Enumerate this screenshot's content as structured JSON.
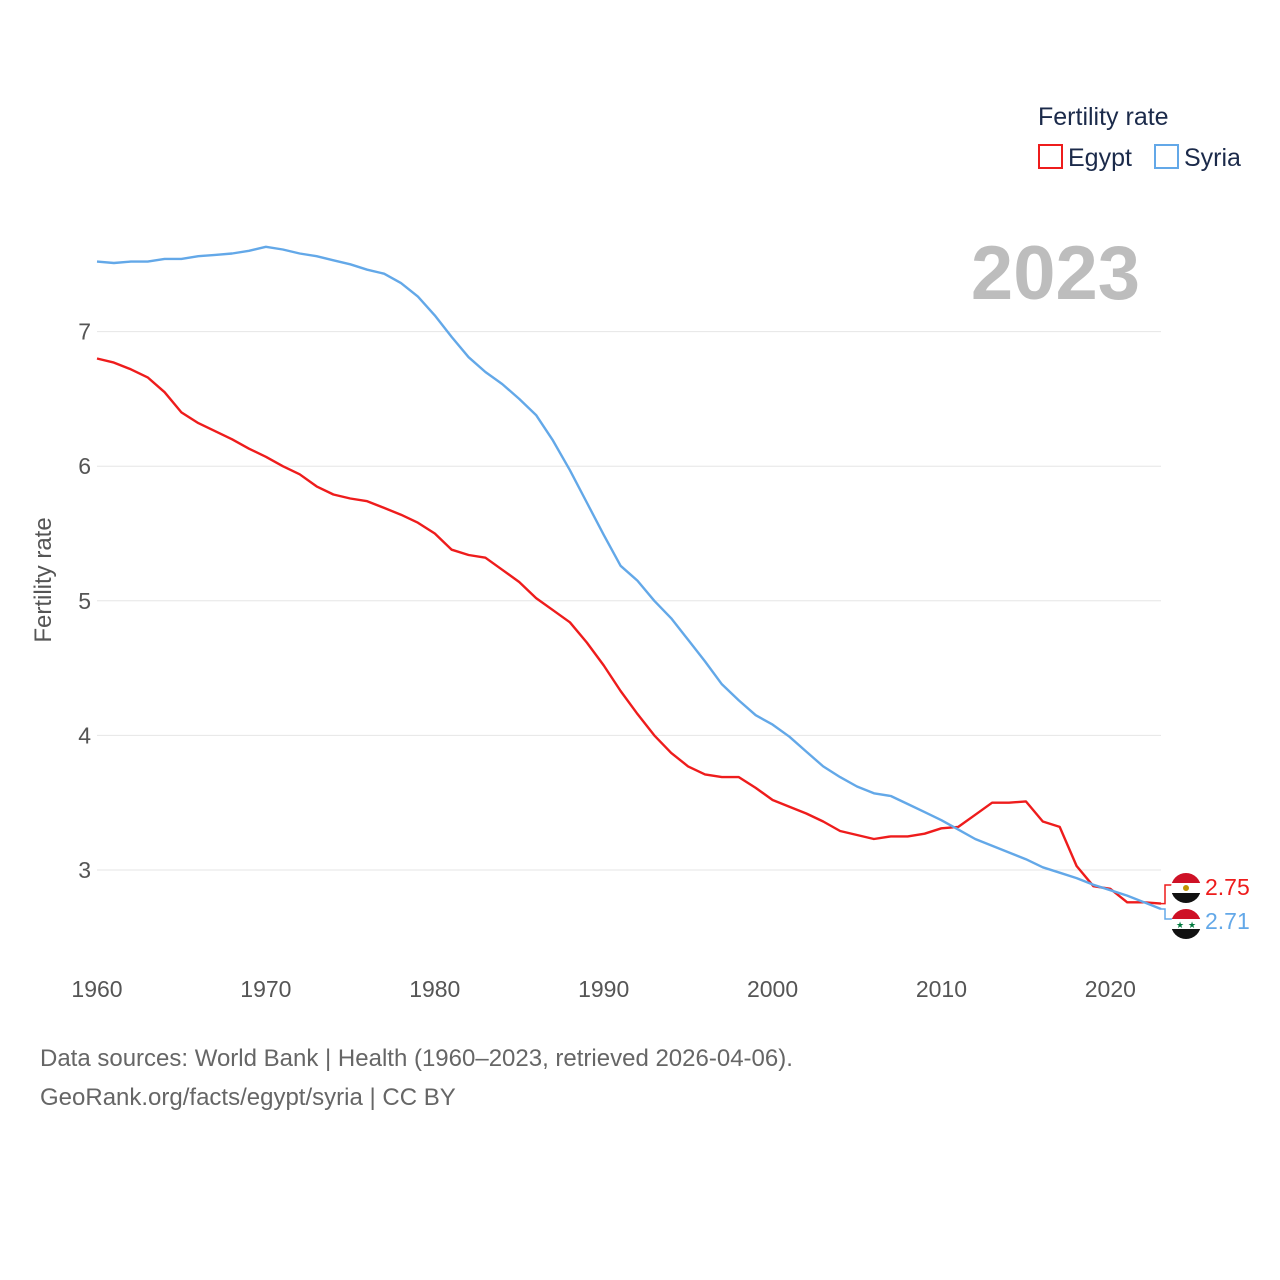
{
  "chart_data": {
    "type": "line",
    "title": "",
    "year_label": "2023",
    "xlabel": "",
    "ylabel": "Fertility rate",
    "xlim": [
      1960,
      2023
    ],
    "ylim": [
      2.5,
      7.7
    ],
    "x_ticks": [
      "1960",
      "1970",
      "1980",
      "1990",
      "2000",
      "2010",
      "2020"
    ],
    "y_ticks": [
      "3",
      "4",
      "5",
      "6",
      "7"
    ],
    "grid": true,
    "legend": {
      "title": "Fertility rate",
      "position": "top-right",
      "entries": [
        {
          "name": "Egypt",
          "color": "#ee1c1c"
        },
        {
          "name": "Syria",
          "color": "#63a8e8"
        }
      ]
    },
    "x": [
      1960,
      1961,
      1962,
      1963,
      1964,
      1965,
      1966,
      1967,
      1968,
      1969,
      1970,
      1971,
      1972,
      1973,
      1974,
      1975,
      1976,
      1977,
      1978,
      1979,
      1980,
      1981,
      1982,
      1983,
      1984,
      1985,
      1986,
      1987,
      1988,
      1989,
      1990,
      1991,
      1992,
      1993,
      1994,
      1995,
      1996,
      1997,
      1998,
      1999,
      2000,
      2001,
      2002,
      2003,
      2004,
      2005,
      2006,
      2007,
      2008,
      2009,
      2010,
      2011,
      2012,
      2013,
      2014,
      2015,
      2016,
      2017,
      2018,
      2019,
      2020,
      2021,
      2022,
      2023
    ],
    "series": [
      {
        "name": "Egypt",
        "color": "#ee1c1c",
        "end_label": "2.75",
        "flag": "egypt-flag-icon",
        "values": [
          6.8,
          6.77,
          6.72,
          6.66,
          6.55,
          6.4,
          6.32,
          6.26,
          6.2,
          6.13,
          6.07,
          6.0,
          5.94,
          5.85,
          5.79,
          5.76,
          5.74,
          5.69,
          5.64,
          5.58,
          5.5,
          5.38,
          5.34,
          5.32,
          5.23,
          5.14,
          5.02,
          4.93,
          4.84,
          4.69,
          4.52,
          4.33,
          4.16,
          4.0,
          3.87,
          3.77,
          3.71,
          3.69,
          3.69,
          3.61,
          3.52,
          3.47,
          3.42,
          3.36,
          3.29,
          3.26,
          3.23,
          3.25,
          3.25,
          3.27,
          3.31,
          3.32,
          3.41,
          3.5,
          3.5,
          3.51,
          3.36,
          3.32,
          3.03,
          2.88,
          2.86,
          2.76,
          2.76,
          2.75
        ]
      },
      {
        "name": "Syria",
        "color": "#63a8e8",
        "end_label": "2.71",
        "flag": "syria-flag-icon",
        "values": [
          7.52,
          7.51,
          7.52,
          7.52,
          7.54,
          7.54,
          7.56,
          7.57,
          7.58,
          7.6,
          7.63,
          7.61,
          7.58,
          7.56,
          7.53,
          7.5,
          7.46,
          7.43,
          7.36,
          7.26,
          7.12,
          6.96,
          6.81,
          6.7,
          6.61,
          6.5,
          6.38,
          6.19,
          5.97,
          5.73,
          5.49,
          5.26,
          5.15,
          5.0,
          4.87,
          4.71,
          4.55,
          4.38,
          4.26,
          4.15,
          4.08,
          3.99,
          3.88,
          3.77,
          3.69,
          3.62,
          3.57,
          3.55,
          3.49,
          3.43,
          3.37,
          3.3,
          3.23,
          3.18,
          3.13,
          3.08,
          3.02,
          2.98,
          2.94,
          2.89,
          2.85,
          2.81,
          2.76,
          2.71
        ]
      }
    ]
  },
  "footer": {
    "line1": "Data sources: World Bank | Health (1960–2023, retrieved 2026-04-06).",
    "line2": "GeoRank.org/facts/egypt/syria | CC BY"
  }
}
